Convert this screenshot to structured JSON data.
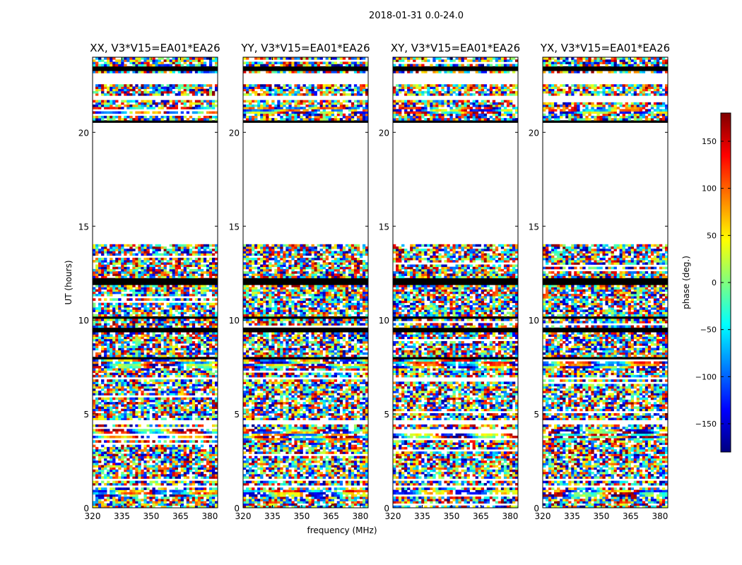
{
  "figure": {
    "suptitle": "2018-01-31 0.0-24.0",
    "xlabel": "frequency (MHz)",
    "ylabel": "UT (hours)"
  },
  "colorbar": {
    "label": "phase (deg.)",
    "range": [
      -180,
      180
    ],
    "ticks": [
      150,
      100,
      50,
      0,
      -50,
      -100,
      -150
    ],
    "tick_labels": [
      "150",
      "100",
      "50",
      "0",
      "−50",
      "−100",
      "−150"
    ],
    "colormap": [
      "#00007f",
      "#0000ff",
      "#007fff",
      "#00ffff",
      "#7fff7f",
      "#ffff00",
      "#ff7f00",
      "#ff0000",
      "#7f0000"
    ]
  },
  "chart_data": {
    "type": "heatmap",
    "description_of_values": "phase (deg.) vs frequency and UT",
    "x_range": [
      320,
      384
    ],
    "y_range": [
      0,
      24
    ],
    "x_ticks": [
      320,
      335,
      350,
      365,
      380
    ],
    "y_ticks": [
      0,
      5,
      10,
      15,
      20
    ],
    "panels": [
      {
        "title": "XX, V3*V15=EA01*EA26"
      },
      {
        "title": "YY, V3*V15=EA01*EA26"
      },
      {
        "title": "XY, V3*V15=EA01*EA26"
      },
      {
        "title": "YX, V3*V15=EA01*EA26"
      }
    ],
    "flagged_black_rows_hours": [
      [
        23.3,
        23.5
      ],
      [
        20.5,
        20.65
      ],
      [
        11.9,
        12.2
      ],
      [
        10.1,
        10.2
      ],
      [
        9.4,
        9.6
      ],
      [
        7.9,
        8.0
      ]
    ],
    "empty_rows_hours": [
      [
        22.6,
        23.2
      ],
      [
        21.7,
        22.0
      ],
      [
        14.0,
        20.5
      ],
      [
        6.9,
        7.0
      ],
      [
        4.5,
        4.7
      ],
      [
        1.4,
        1.6
      ],
      [
        1.05,
        1.2
      ]
    ],
    "structured_rows_hours": [
      [
        7.5,
        7.9
      ],
      [
        0.6,
        1.0
      ],
      [
        3.6,
        4.2
      ],
      [
        21.0,
        21.3
      ]
    ]
  }
}
